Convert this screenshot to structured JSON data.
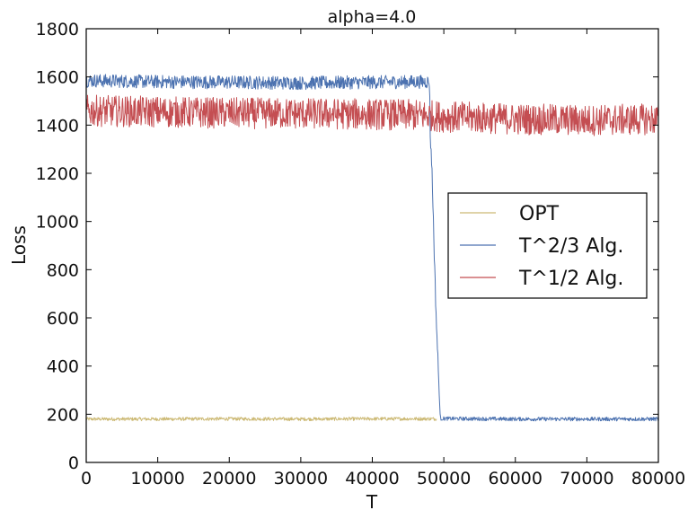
{
  "chart_data": {
    "type": "line",
    "title": "alpha=4.0",
    "xlabel": "T",
    "ylabel": "Loss",
    "xlim": [
      0,
      80000
    ],
    "ylim": [
      0,
      1800
    ],
    "xticks": [
      0,
      10000,
      20000,
      30000,
      40000,
      50000,
      60000,
      70000,
      80000
    ],
    "yticks": [
      0,
      200,
      400,
      600,
      800,
      1000,
      1200,
      1400,
      1600,
      1800
    ],
    "legend_position": "center-right",
    "series": [
      {
        "name": "OPT",
        "color": "#ccb974",
        "x": [
          0,
          10000,
          20000,
          30000,
          40000,
          49000
        ],
        "y": [
          180,
          180,
          181,
          180,
          181,
          181
        ],
        "noise_amplitude": 7
      },
      {
        "name": "T^2/3 Alg.",
        "color": "#4c72b0",
        "x": [
          0,
          10000,
          20000,
          30000,
          40000,
          48000,
          48100,
          48300,
          48500,
          48700,
          48900,
          49100,
          49300,
          49500,
          60000,
          70000,
          80000
        ],
        "y": [
          1585,
          1580,
          1578,
          1575,
          1578,
          1580,
          1360,
          1250,
          1050,
          830,
          630,
          480,
          330,
          182,
          180,
          180,
          180
        ],
        "noise_amplitude": 28
      },
      {
        "name": "T^1/2 Alg.",
        "color": "#c44e52",
        "x": [
          0,
          10000,
          20000,
          30000,
          40000,
          48000,
          50000,
          60000,
          70000,
          80000
        ],
        "y": [
          1460,
          1455,
          1450,
          1448,
          1445,
          1440,
          1435,
          1425,
          1420,
          1425
        ],
        "noise_amplitude": 65
      }
    ]
  }
}
